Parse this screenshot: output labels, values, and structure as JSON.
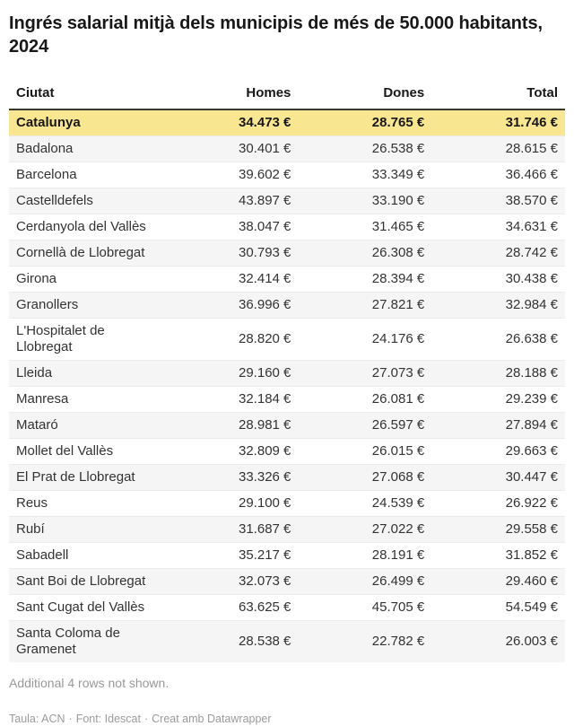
{
  "chart_data": {
    "type": "table",
    "title": "Ingrés salarial mitjà dels municipis de més de 50.000 habitants, 2024",
    "columns": [
      "Ciutat",
      "Homes",
      "Dones",
      "Total"
    ],
    "column_keys": [
      "ciutat",
      "homes",
      "dones",
      "total"
    ],
    "rows": [
      [
        "Catalunya",
        "34.473 €",
        "28.765 €",
        "31.746 €"
      ],
      [
        "Badalona",
        "30.401 €",
        "26.538 €",
        "28.615 €"
      ],
      [
        "Barcelona",
        "39.602 €",
        "33.349 €",
        "36.466 €"
      ],
      [
        "Castelldefels",
        "43.897 €",
        "33.190 €",
        "38.570 €"
      ],
      [
        "Cerdanyola del Vallès",
        "38.047 €",
        "31.465 €",
        "34.631 €"
      ],
      [
        "Cornellà de Llobregat",
        "30.793 €",
        "26.308 €",
        "28.742 €"
      ],
      [
        "Girona",
        "32.414 €",
        "28.394 €",
        "30.438 €"
      ],
      [
        "Granollers",
        "36.996 €",
        "27.821 €",
        "32.984 €"
      ],
      [
        "L'Hospitalet de Llobregat",
        "28.820 €",
        "24.176 €",
        "26.638 €"
      ],
      [
        "Lleida",
        "29.160 €",
        "27.073 €",
        "28.188 €"
      ],
      [
        "Manresa",
        "32.184 €",
        "26.081 €",
        "29.239 €"
      ],
      [
        "Mataró",
        "28.981 €",
        "26.597 €",
        "27.894 €"
      ],
      [
        "Mollet del Vallès",
        "32.809 €",
        "26.015 €",
        "29.663 €"
      ],
      [
        "El Prat de Llobregat",
        "33.326 €",
        "27.068 €",
        "30.447 €"
      ],
      [
        "Reus",
        "29.100 €",
        "24.539 €",
        "26.922 €"
      ],
      [
        "Rubí",
        "31.687 €",
        "27.022 €",
        "29.558 €"
      ],
      [
        "Sabadell",
        "35.217 €",
        "28.191 €",
        "31.852 €"
      ],
      [
        "Sant Boi de Llobregat",
        "32.073 €",
        "26.499 €",
        "29.460 €"
      ],
      [
        "Sant Cugat del Vallès",
        "63.625 €",
        "45.705 €",
        "54.549 €"
      ],
      [
        "Santa Coloma de Gramenet",
        "28.538 €",
        "22.782 €",
        "26.003 €"
      ]
    ],
    "highlight_row_index": 0,
    "layout_hints": {
      "striped_rows": true,
      "first_column_align": "left",
      "value_columns_align": "right"
    }
  },
  "note": "Additional 4 rows not shown.",
  "footer": {
    "table_credit": "Taula: ACN",
    "source_credit": "Font: Idescat",
    "created_with": "Creat amb Datawrapper",
    "separator": "·"
  },
  "colors": {
    "highlight_row": "#f9e690",
    "stripe": "#f5f5f6",
    "header_rule": "#383838",
    "body_text": "#333333",
    "emphasis_text": "#181818",
    "muted_text": "#9b9b9b"
  }
}
